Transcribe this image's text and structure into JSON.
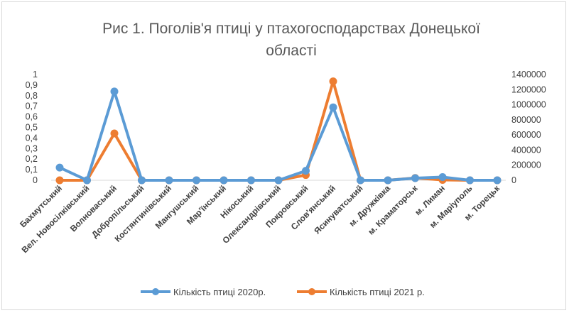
{
  "chart_data": {
    "type": "line",
    "title": "Рис 1. Поголів'я птиці  у птахогосподарствах Донецької області",
    "title_lines": [
      "Рис 1. Поголів'я птиці  у птахогосподарствах Донецької",
      "області"
    ],
    "categories": [
      "Бахмутський",
      "Вел. Новосілківський",
      "Волноваський",
      "Добропільський",
      "Костянтинівський",
      "Мангушський",
      "Мар'їнський",
      "Нікоський",
      "Олександрівський",
      "Покровський",
      "Слов'янський",
      "Ясинуватський",
      "м. Дружківка",
      "м. Краматорськ",
      "м. Лиман",
      "м. Маріуполь",
      "м. Торецьк"
    ],
    "series": [
      {
        "name": "Кількість птиці 2020р.",
        "color": "#5b9bd5",
        "axis": "left",
        "values": [
          0.12,
          0,
          0.84,
          0,
          0,
          0,
          0,
          0,
          0,
          0.09,
          0.69,
          0,
          0,
          0.02,
          0.03,
          0,
          0
        ]
      },
      {
        "name": "Кількість птиці 2021 р.",
        "color": "#ed7d31",
        "axis": "right",
        "values": [
          0,
          0,
          620000,
          0,
          0,
          0,
          0,
          0,
          0,
          70000,
          1310000,
          0,
          0,
          30000,
          5000,
          0,
          0
        ]
      }
    ],
    "left_axis": {
      "min": 0,
      "max": 1,
      "ticks": [
        "0",
        "0,1",
        "0,2",
        "0,3",
        "0,4",
        "0,5",
        "0,6",
        "0,7",
        "0,8",
        "0,9",
        "1"
      ]
    },
    "right_axis": {
      "min": 0,
      "max": 1400000,
      "ticks": [
        "0",
        "200000",
        "400000",
        "600000",
        "800000",
        "1000000",
        "1200000",
        "1400000"
      ]
    },
    "grid": false,
    "legend_position": "bottom"
  }
}
